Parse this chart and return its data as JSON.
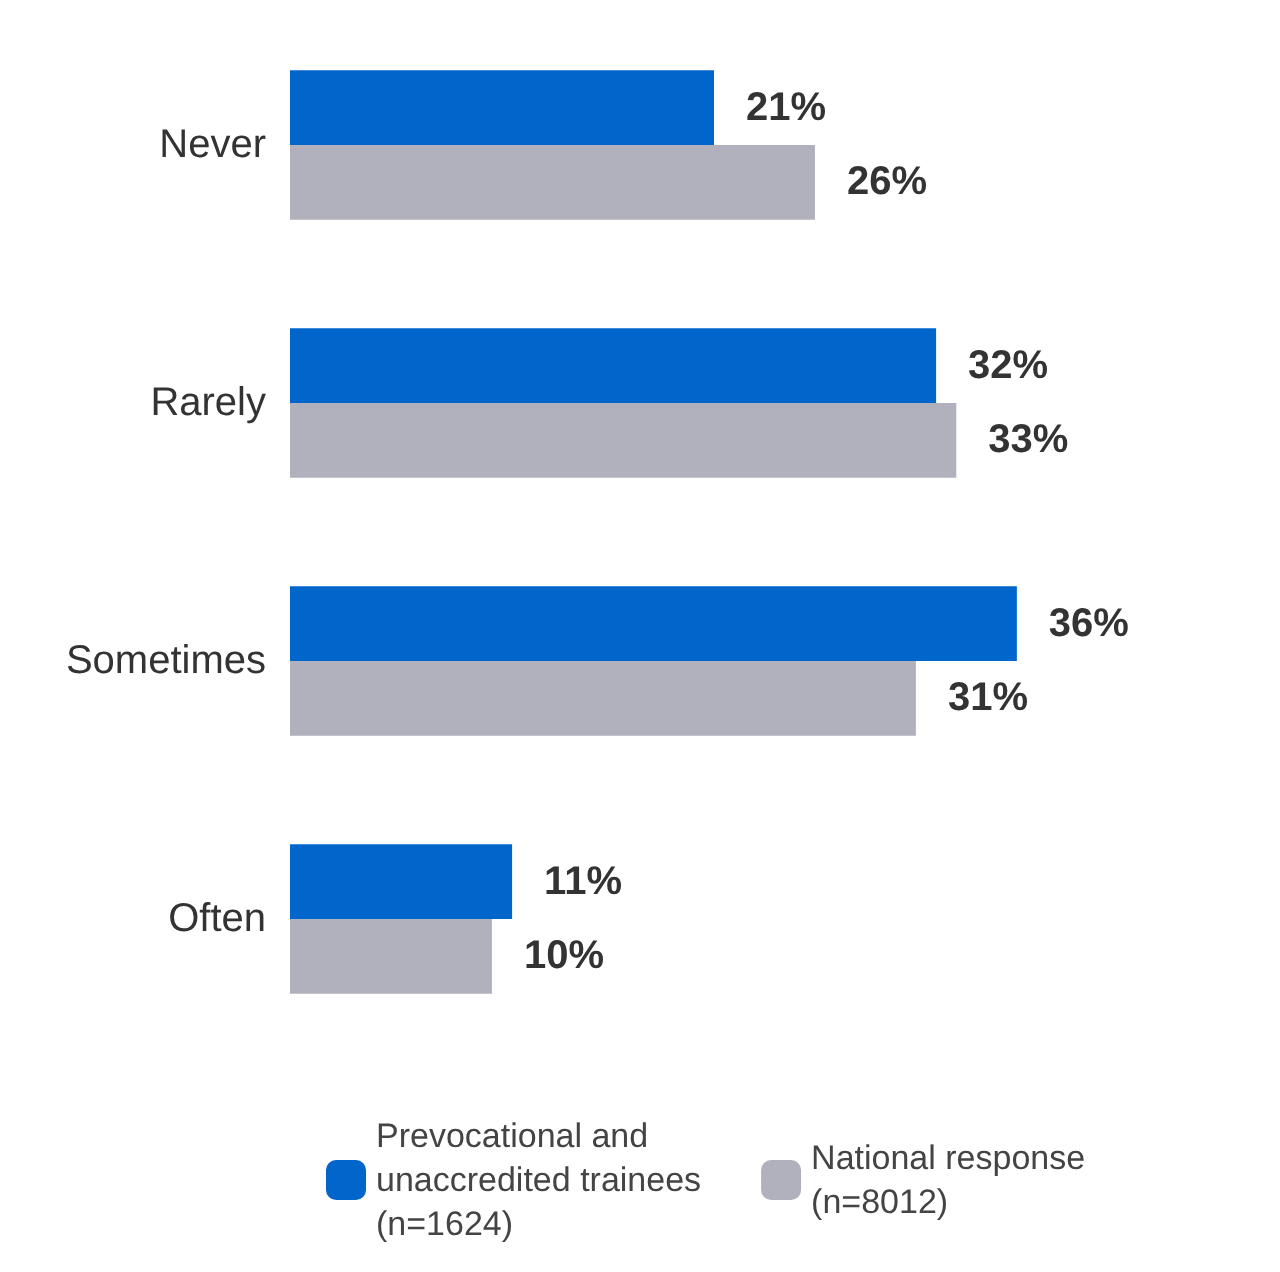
{
  "chart_data": {
    "type": "bar",
    "orientation": "horizontal",
    "categories": [
      "Never",
      "Rarely",
      "Sometimes",
      "Often"
    ],
    "series": [
      {
        "name": "Prevocational and\nunaccredited trainees\n(n=1624)",
        "color": "#0066cc",
        "values": [
          21,
          32,
          36,
          11
        ],
        "value_labels": [
          "21%",
          "32%",
          "36%",
          "11%"
        ]
      },
      {
        "name": "National response\n(n=8012)",
        "color": "#b1b1bd",
        "values": [
          26,
          33,
          31,
          10
        ],
        "value_labels": [
          "26%",
          "33%",
          "31%",
          "10%"
        ]
      }
    ],
    "legend": "bottom"
  }
}
